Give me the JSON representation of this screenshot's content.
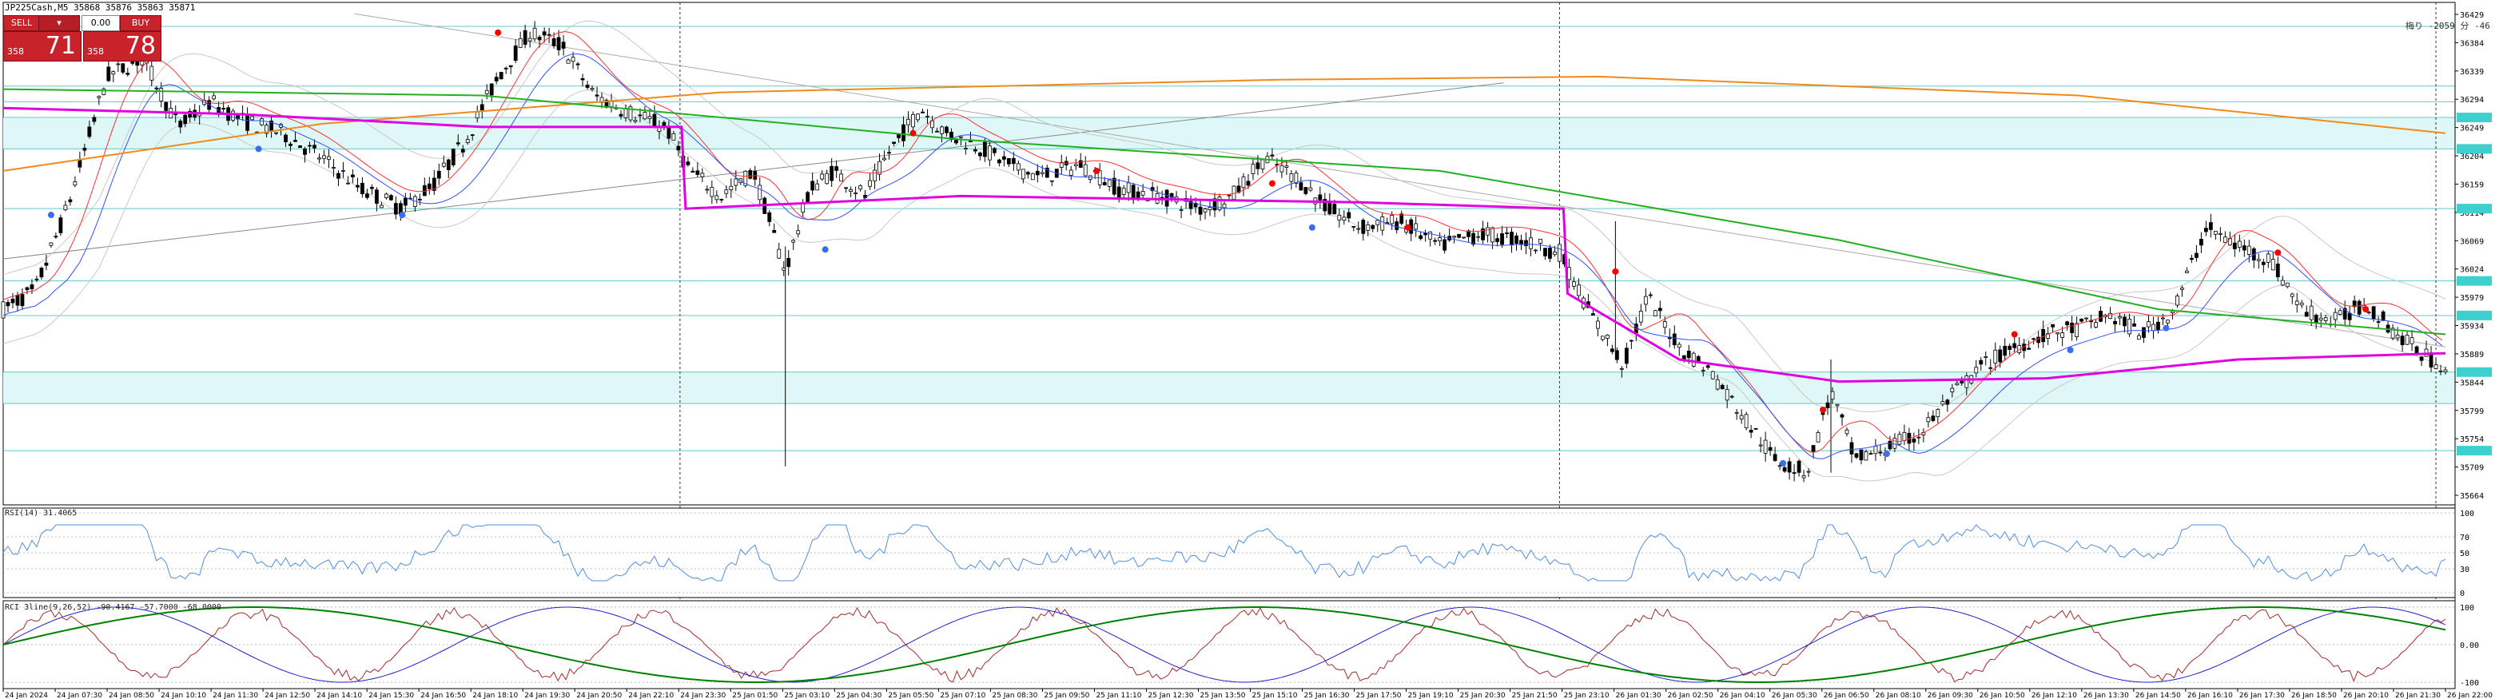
{
  "symbol_header": "JP225Cash,M5  35868 35876 35863 35871",
  "trade_panel": {
    "sell_label": "SELL",
    "buy_label": "BUY",
    "lot": "0.00",
    "sell_small": "358",
    "sell_big": "71",
    "buy_small": "358",
    "buy_big": "78"
  },
  "info_right": "梅り -2059 分 -46",
  "price_axis": [
    "36429",
    "36384",
    "36339",
    "36294",
    "36249",
    "36204",
    "36159",
    "36114",
    "36069",
    "36024",
    "35979",
    "35934",
    "35889",
    "35844",
    "35799",
    "35754",
    "35709",
    "35664"
  ],
  "price_range": [
    35664,
    36429
  ],
  "time_labels": [
    "24 Jan 2024",
    "24 Jan 07:30",
    "24 Jan 08:50",
    "24 Jan 10:10",
    "24 Jan 11:30",
    "24 Jan 12:50",
    "24 Jan 14:10",
    "24 Jan 15:30",
    "24 Jan 16:50",
    "24 Jan 18:10",
    "24 Jan 19:30",
    "24 Jan 20:50",
    "24 Jan 22:10",
    "24 Jan 23:30",
    "25 Jan 01:50",
    "25 Jan 03:10",
    "25 Jan 04:30",
    "25 Jan 05:50",
    "25 Jan 07:10",
    "25 Jan 08:30",
    "25 Jan 09:50",
    "25 Jan 11:10",
    "25 Jan 12:30",
    "25 Jan 13:50",
    "25 Jan 15:10",
    "25 Jan 16:30",
    "25 Jan 17:50",
    "25 Jan 19:10",
    "25 Jan 20:30",
    "25 Jan 21:50",
    "25 Jan 23:10",
    "26 Jan 01:30",
    "26 Jan 02:50",
    "26 Jan 04:10",
    "26 Jan 05:30",
    "26 Jan 06:50",
    "26 Jan 08:10",
    "26 Jan 09:30",
    "26 Jan 10:50",
    "26 Jan 12:10",
    "26 Jan 13:30",
    "26 Jan 14:50",
    "26 Jan 16:10",
    "26 Jan 17:30",
    "26 Jan 18:50",
    "26 Jan 20:10",
    "26 Jan 21:30",
    "26 Jan 22:00"
  ],
  "rsi": {
    "label": "RSI(14) 31.4065",
    "levels": [
      "100",
      "70",
      "50",
      "30",
      "0"
    ],
    "color": "#4f8fe0"
  },
  "rci": {
    "label": "RCI 3line(9,26,52) -90.4167 -57.7000 -68.0000",
    "levels": [
      "100",
      "0.00",
      "-100"
    ],
    "colors": [
      "#a52a2a",
      "#2020d0",
      "#008000"
    ]
  },
  "colors": {
    "candle": "#000000",
    "ma_magenta": "#e000e0",
    "ma_orange": "#f08a1a",
    "ma_green": "#22b022",
    "ma_red": "#ff3030",
    "ma_blue": "#3050ff",
    "zone_fill": "#e0f7f7",
    "zone_line": "#66c8c8",
    "axis_tag": "#3ecfcf",
    "dot_red": "#ff0000",
    "dot_blue": "#3a6ef0"
  },
  "chart_data": {
    "type": "candlestick",
    "title": "JP225Cash,M5",
    "close_path": [
      {
        "t": 0,
        "p": 35960
      },
      {
        "t": 40,
        "p": 35990
      },
      {
        "t": 80,
        "p": 36120
      },
      {
        "t": 130,
        "p": 36330
      },
      {
        "t": 175,
        "p": 36360
      },
      {
        "t": 220,
        "p": 36250
      },
      {
        "t": 260,
        "p": 36290
      },
      {
        "t": 300,
        "p": 36260
      },
      {
        "t": 350,
        "p": 36240
      },
      {
        "t": 400,
        "p": 36200
      },
      {
        "t": 450,
        "p": 36150
      },
      {
        "t": 500,
        "p": 36120
      },
      {
        "t": 540,
        "p": 36160
      },
      {
        "t": 580,
        "p": 36230
      },
      {
        "t": 620,
        "p": 36330
      },
      {
        "t": 660,
        "p": 36400
      },
      {
        "t": 700,
        "p": 36380
      },
      {
        "t": 740,
        "p": 36300
      },
      {
        "t": 790,
        "p": 36270
      },
      {
        "t": 830,
        "p": 36250
      },
      {
        "t": 860,
        "p": 36180
      },
      {
        "t": 900,
        "p": 36140
      },
      {
        "t": 940,
        "p": 36180
      },
      {
        "t": 980,
        "p": 36020
      },
      {
        "t": 1010,
        "p": 36150
      },
      {
        "t": 1040,
        "p": 36180
      },
      {
        "t": 1080,
        "p": 36140
      },
      {
        "t": 1110,
        "p": 36210
      },
      {
        "t": 1150,
        "p": 36280
      },
      {
        "t": 1180,
        "p": 36240
      },
      {
        "t": 1220,
        "p": 36220
      },
      {
        "t": 1260,
        "p": 36190
      },
      {
        "t": 1300,
        "p": 36170
      },
      {
        "t": 1350,
        "p": 36190
      },
      {
        "t": 1400,
        "p": 36150
      },
      {
        "t": 1450,
        "p": 36140
      },
      {
        "t": 1500,
        "p": 36120
      },
      {
        "t": 1540,
        "p": 36140
      },
      {
        "t": 1580,
        "p": 36200
      },
      {
        "t": 1620,
        "p": 36170
      },
      {
        "t": 1660,
        "p": 36120
      },
      {
        "t": 1700,
        "p": 36090
      },
      {
        "t": 1750,
        "p": 36100
      },
      {
        "t": 1800,
        "p": 36060
      },
      {
        "t": 1850,
        "p": 36080
      },
      {
        "t": 1900,
        "p": 36070
      },
      {
        "t": 1950,
        "p": 36050
      },
      {
        "t": 1990,
        "p": 35950
      },
      {
        "t": 2030,
        "p": 35870
      },
      {
        "t": 2060,
        "p": 35980
      },
      {
        "t": 2100,
        "p": 35900
      },
      {
        "t": 2140,
        "p": 35860
      },
      {
        "t": 2180,
        "p": 35790
      },
      {
        "t": 2220,
        "p": 35720
      },
      {
        "t": 2260,
        "p": 35700
      },
      {
        "t": 2290,
        "p": 35830
      },
      {
        "t": 2320,
        "p": 35720
      },
      {
        "t": 2360,
        "p": 35740
      },
      {
        "t": 2400,
        "p": 35760
      },
      {
        "t": 2440,
        "p": 35820
      },
      {
        "t": 2480,
        "p": 35870
      },
      {
        "t": 2520,
        "p": 35900
      },
      {
        "t": 2560,
        "p": 35920
      },
      {
        "t": 2600,
        "p": 35930
      },
      {
        "t": 2640,
        "p": 35950
      },
      {
        "t": 2680,
        "p": 35920
      },
      {
        "t": 2720,
        "p": 35960
      },
      {
        "t": 2760,
        "p": 36090
      },
      {
        "t": 2800,
        "p": 36060
      },
      {
        "t": 2840,
        "p": 36040
      },
      {
        "t": 2880,
        "p": 35960
      },
      {
        "t": 2920,
        "p": 35940
      },
      {
        "t": 2960,
        "p": 35970
      },
      {
        "t": 3000,
        "p": 35920
      },
      {
        "t": 3040,
        "p": 35880
      },
      {
        "t": 3060,
        "p": 35871
      }
    ],
    "moving_averages": {
      "magenta": [
        {
          "t": 0,
          "p": 36280
        },
        {
          "t": 300,
          "p": 36270
        },
        {
          "t": 600,
          "p": 36250
        },
        {
          "t": 850,
          "p": 36250
        },
        {
          "t": 855,
          "p": 36120
        },
        {
          "t": 1200,
          "p": 36140
        },
        {
          "t": 1700,
          "p": 36130
        },
        {
          "t": 1955,
          "p": 36120
        },
        {
          "t": 1960,
          "p": 35985
        },
        {
          "t": 2100,
          "p": 35880
        },
        {
          "t": 2300,
          "p": 35845
        },
        {
          "t": 2560,
          "p": 35850
        },
        {
          "t": 2800,
          "p": 35880
        },
        {
          "t": 3060,
          "p": 35890
        }
      ],
      "orange": [
        {
          "t": 0,
          "p": 36180
        },
        {
          "t": 400,
          "p": 36255
        },
        {
          "t": 900,
          "p": 36305
        },
        {
          "t": 1600,
          "p": 36325
        },
        {
          "t": 2000,
          "p": 36330
        },
        {
          "t": 2600,
          "p": 36300
        },
        {
          "t": 3060,
          "p": 36240
        }
      ],
      "green": [
        {
          "t": 0,
          "p": 36310
        },
        {
          "t": 600,
          "p": 36300
        },
        {
          "t": 1200,
          "p": 36230
        },
        {
          "t": 1800,
          "p": 36180
        },
        {
          "t": 2300,
          "p": 36070
        },
        {
          "t": 2700,
          "p": 35960
        },
        {
          "t": 3060,
          "p": 35920
        }
      ]
    }
  }
}
